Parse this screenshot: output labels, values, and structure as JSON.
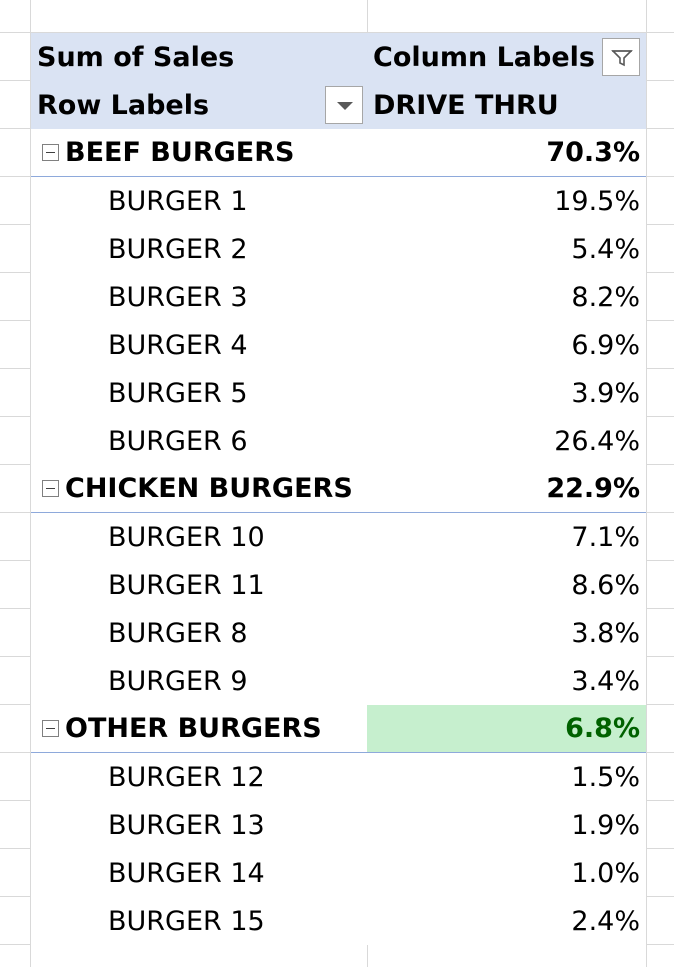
{
  "pivot": {
    "header": {
      "value_field": "Sum of Sales",
      "column_labels": "Column Labels",
      "row_labels": "Row Labels",
      "column_value": "DRIVE THRU"
    },
    "groups": [
      {
        "name": "BEEF BURGERS",
        "total": "70.3%",
        "items": [
          {
            "label": "BURGER 1",
            "value": "19.5%"
          },
          {
            "label": "BURGER 2",
            "value": "5.4%"
          },
          {
            "label": "BURGER 3",
            "value": "8.2%"
          },
          {
            "label": "BURGER 4",
            "value": "6.9%"
          },
          {
            "label": "BURGER 5",
            "value": "3.9%"
          },
          {
            "label": "BURGER 6",
            "value": "26.4%"
          }
        ]
      },
      {
        "name": "CHICKEN BURGERS",
        "total": "22.9%",
        "items": [
          {
            "label": "BURGER 10",
            "value": "7.1%"
          },
          {
            "label": "BURGER 11",
            "value": "8.6%"
          },
          {
            "label": "BURGER 8",
            "value": "3.8%"
          },
          {
            "label": "BURGER 9",
            "value": "3.4%"
          }
        ]
      },
      {
        "name": "OTHER BURGERS",
        "total": "6.8%",
        "highlighted": true,
        "items": [
          {
            "label": "BURGER 12",
            "value": "1.5%"
          },
          {
            "label": "BURGER 13",
            "value": "1.9%"
          },
          {
            "label": "BURGER 14",
            "value": "1.0%"
          },
          {
            "label": "BURGER 15",
            "value": "2.4%"
          }
        ]
      }
    ],
    "colors": {
      "header_bg": "#dae3f3",
      "highlight_bg": "#c6efce",
      "highlight_text": "#006100",
      "group_border": "#8ea9db",
      "gridline": "#d9d9d9"
    },
    "icons": {
      "collapse": "collapse-minus-icon",
      "row_filter": "dropdown-arrow-icon",
      "column_filter": "filter-funnel-icon"
    }
  }
}
